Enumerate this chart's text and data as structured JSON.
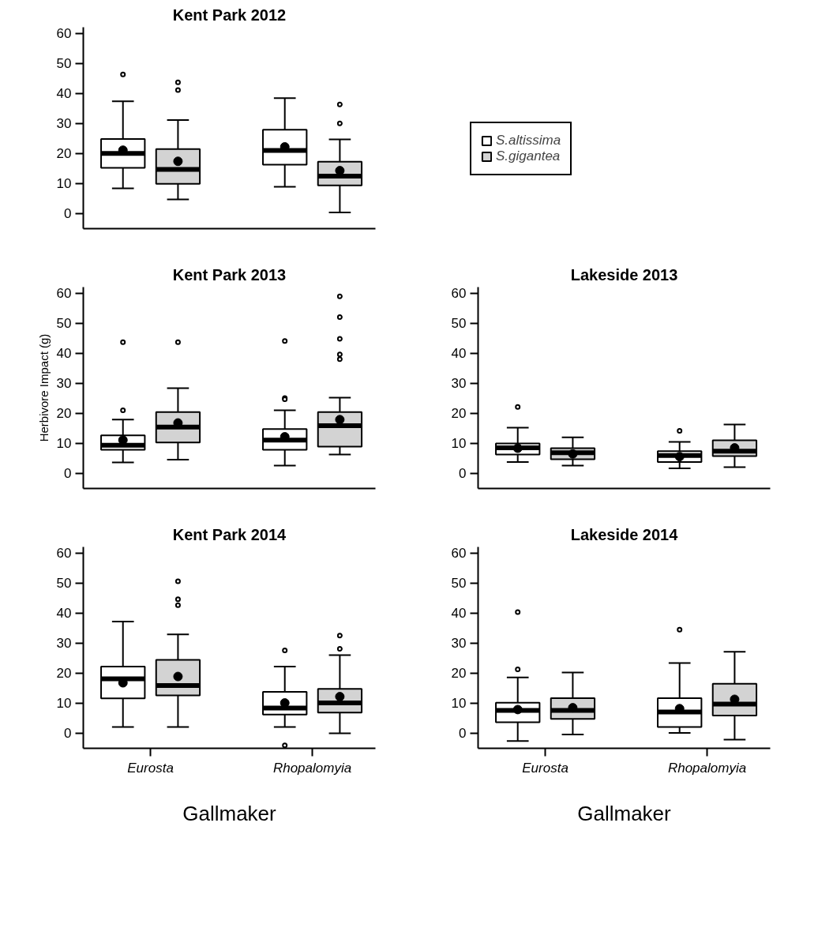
{
  "chart_data": [
    {
      "type": "box",
      "title": "Kent Park 2012",
      "categories": [
        null,
        null
      ],
      "ylim": [
        -5,
        62
      ],
      "yticks": [
        0,
        10,
        20,
        30,
        40,
        50,
        60
      ],
      "tick_labels": "y",
      "legend": "right",
      "series": [
        {
          "name": "S.altissima",
          "color": "#ffffff",
          "boxes": [
            {
              "low": 8.4,
              "q1": 15.2,
              "median": 20.0,
              "q3": 24.8,
              "high": 37.4,
              "mean": 21.1,
              "outliers": [
                46.3
              ]
            },
            {
              "low": 8.9,
              "q1": 16.3,
              "median": 21.0,
              "q3": 27.9,
              "high": 38.4,
              "mean": 22.2
            }
          ]
        },
        {
          "name": "S.gigantea",
          "color": "#d3d3d3",
          "boxes": [
            {
              "low": 4.7,
              "q1": 9.9,
              "median": 14.7,
              "q3": 21.5,
              "high": 31.1,
              "mean": 17.4,
              "outliers": [
                43.7,
                41.1
              ]
            },
            {
              "low": 0.4,
              "q1": 9.4,
              "median": 12.5,
              "q3": 17.3,
              "high": 24.7,
              "mean": 14.3,
              "outliers": [
                36.3,
                30.0
              ]
            }
          ]
        }
      ]
    },
    {
      "type": "box",
      "title": "Kent Park 2013",
      "categories": [
        null,
        null
      ],
      "ylim": [
        -5,
        62
      ],
      "yticks": [
        0,
        10,
        20,
        30,
        40,
        50,
        60
      ],
      "tick_labels": "y",
      "ylabel": "Herbivore Impact (g)",
      "series": [
        {
          "color": "#ffffff",
          "boxes": [
            {
              "low": 3.7,
              "q1": 7.9,
              "median": 9.4,
              "q3": 12.7,
              "high": 17.9,
              "mean": 11.1,
              "outliers": [
                43.7,
                21.0
              ]
            },
            {
              "low": 2.6,
              "q1": 7.9,
              "median": 11.1,
              "q3": 14.8,
              "high": 21.0,
              "mean": 12.2,
              "outliers": [
                44.1,
                25.1,
                24.7
              ]
            }
          ]
        },
        {
          "color": "#d3d3d3",
          "boxes": [
            {
              "low": 4.6,
              "q1": 10.3,
              "median": 15.4,
              "q3": 20.4,
              "high": 28.4,
              "mean": 16.8,
              "outliers": [
                43.7
              ]
            },
            {
              "low": 6.3,
              "q1": 8.9,
              "median": 15.9,
              "q3": 20.4,
              "high": 25.2,
              "mean": 17.9,
              "outliers": [
                58.9,
                52.0,
                44.8,
                39.6,
                38.0
              ]
            }
          ]
        }
      ]
    },
    {
      "type": "box",
      "title": "Lakeside 2013",
      "categories": [
        null,
        null
      ],
      "ylim": [
        -5,
        62
      ],
      "yticks": [
        0,
        10,
        20,
        30,
        40,
        50,
        60
      ],
      "tick_labels": "y",
      "series": [
        {
          "color": "#ffffff",
          "boxes": [
            {
              "low": 3.8,
              "q1": 6.3,
              "median": 8.5,
              "q3": 10.0,
              "high": 15.2,
              "mean": 8.4,
              "outliers": [
                22.1
              ]
            },
            {
              "low": 1.7,
              "q1": 3.8,
              "median": 6.0,
              "q3": 7.4,
              "high": 10.5,
              "mean": 5.6,
              "outliers": [
                14.2
              ]
            }
          ]
        },
        {
          "color": "#d3d3d3",
          "boxes": [
            {
              "low": 2.6,
              "q1": 4.7,
              "median": 6.9,
              "q3": 8.4,
              "high": 12.0,
              "mean": 6.5
            },
            {
              "low": 2.1,
              "q1": 5.8,
              "median": 7.4,
              "q3": 11.0,
              "high": 16.3,
              "mean": 8.5
            }
          ]
        }
      ]
    },
    {
      "type": "box",
      "title": "Kent Park 2014",
      "categories": [
        "Eurosta",
        "Rhopalomyia"
      ],
      "ylim": [
        -5,
        62
      ],
      "yticks": [
        0,
        10,
        20,
        30,
        40,
        50,
        60
      ],
      "xlabel": "Gallmaker",
      "series": [
        {
          "color": "#ffffff",
          "boxes": [
            {
              "low": 2.1,
              "q1": 11.6,
              "median": 18.1,
              "q3": 22.2,
              "high": 37.2,
              "mean": 16.8
            },
            {
              "low": 2.1,
              "q1": 6.2,
              "median": 8.4,
              "q3": 13.8,
              "high": 22.2,
              "mean": 10.1,
              "outliers": [
                27.6,
                -4.0
              ]
            }
          ]
        },
        {
          "color": "#d3d3d3",
          "boxes": [
            {
              "low": 2.1,
              "q1": 12.6,
              "median": 15.9,
              "q3": 24.4,
              "high": 32.9,
              "mean": 18.9,
              "outliers": [
                50.6,
                44.6,
                42.6
              ]
            },
            {
              "low": 0.0,
              "q1": 6.9,
              "median": 10.1,
              "q3": 14.8,
              "high": 26.0,
              "mean": 12.2,
              "outliers": [
                32.5,
                28.1
              ]
            }
          ]
        }
      ]
    },
    {
      "type": "box",
      "title": "Lakeside 2014",
      "categories": [
        "Eurosta",
        "Rhopalomyia"
      ],
      "ylim": [
        -5,
        62
      ],
      "yticks": [
        0,
        10,
        20,
        30,
        40,
        50,
        60
      ],
      "xlabel": "Gallmaker",
      "series": [
        {
          "color": "#ffffff",
          "boxes": [
            {
              "low": -2.6,
              "q1": 3.7,
              "median": 7.6,
              "q3": 10.2,
              "high": 18.6,
              "mean": 7.9,
              "outliers": [
                40.3,
                21.3
              ]
            },
            {
              "low": 0.1,
              "q1": 2.1,
              "median": 7.1,
              "q3": 11.7,
              "high": 23.4,
              "mean": 8.2,
              "outliers": [
                34.5
              ]
            }
          ]
        },
        {
          "color": "#d3d3d3",
          "boxes": [
            {
              "low": -0.4,
              "q1": 4.8,
              "median": 7.6,
              "q3": 11.7,
              "high": 20.2,
              "mean": 8.5
            },
            {
              "low": -2.1,
              "q1": 5.9,
              "median": 9.7,
              "q3": 16.5,
              "high": 27.1,
              "mean": 11.3
            }
          ]
        }
      ]
    }
  ]
}
